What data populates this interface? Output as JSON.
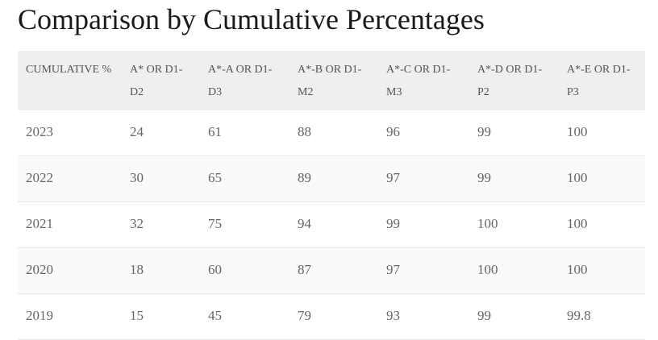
{
  "title": "Comparison by Cumulative Percentages",
  "table": {
    "headers": [
      "CUMULATIVE %",
      "A* OR D1-D2",
      "A*-A OR D1-D3",
      "A*-B OR D1-M2",
      "A*-C OR D1-M3",
      "A*-D OR D1-P2",
      "A*-E OR D1-P3"
    ],
    "rows": [
      [
        "2023",
        "24",
        "61",
        "88",
        "96",
        "99",
        "100"
      ],
      [
        "2022",
        "30",
        "65",
        "89",
        "97",
        "99",
        "100"
      ],
      [
        "2021",
        "32",
        "75",
        "94",
        "99",
        "100",
        "100"
      ],
      [
        "2020",
        "18",
        "60",
        "87",
        "97",
        "100",
        "100"
      ],
      [
        "2019",
        "15",
        "45",
        "79",
        "93",
        "99",
        "99.8"
      ]
    ]
  }
}
